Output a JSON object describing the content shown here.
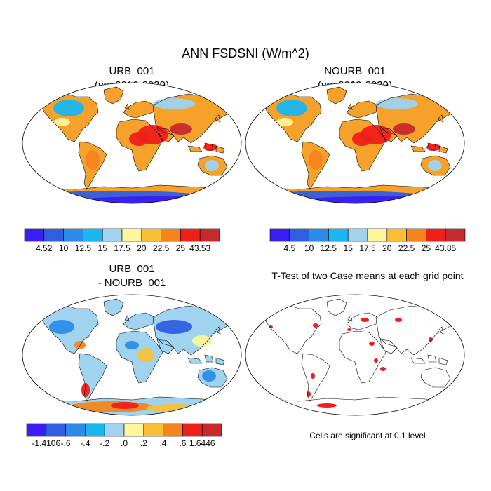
{
  "title": "ANN FSDSNI (W/m^2)",
  "panels": [
    {
      "id": "urb",
      "title_lines": [
        "URB_001",
        "(yrs 2010-2039)"
      ]
    },
    {
      "id": "nourb",
      "title_lines": [
        "NOURB_001",
        "(yrs 2010-2039)"
      ]
    },
    {
      "id": "diff",
      "title_lines": [
        "URB_001",
        "- NOURB_001"
      ]
    },
    {
      "id": "ttest",
      "title_lines": [
        "T-Test of two Case means at each grid point"
      ],
      "note": "Cells are significant at 0.1 level"
    }
  ],
  "colorbars": [
    {
      "panel": "urb",
      "colors": [
        "#3b1ef2",
        "#2f5fe0",
        "#2b8ce8",
        "#1bb6f0",
        "#9fd3ef",
        "#fff59a",
        "#f9c036",
        "#f4851c",
        "#ef1f1a",
        "#c62a2d"
      ],
      "labels": [
        "4.52",
        "10",
        "12.5",
        "15",
        "17.5",
        "20",
        "22.5",
        "25",
        "43.53"
      ]
    },
    {
      "panel": "nourb",
      "colors": [
        "#3b1ef2",
        "#2f5fe0",
        "#2b8ce8",
        "#1bb6f0",
        "#9fd3ef",
        "#fff59a",
        "#f9c036",
        "#f4851c",
        "#ef1f1a",
        "#c62a2d"
      ],
      "labels": [
        "4.5",
        "10",
        "12.5",
        "15",
        "17.5",
        "20",
        "22.5",
        "25",
        "43.85"
      ]
    },
    {
      "panel": "diff",
      "colors": [
        "#3b1ef2",
        "#2f5fe0",
        "#2b8ce8",
        "#1bb6f0",
        "#9fd3ef",
        "#fff59a",
        "#f9c036",
        "#f4851c",
        "#ef1f1a",
        "#c62a2d"
      ],
      "labels": [
        "-1.4106",
        "-.6",
        "-.4",
        "-.2",
        ".0",
        ".2",
        ".4",
        ".6",
        "1.6446"
      ]
    }
  ],
  "significance_color": "#ee1111"
}
